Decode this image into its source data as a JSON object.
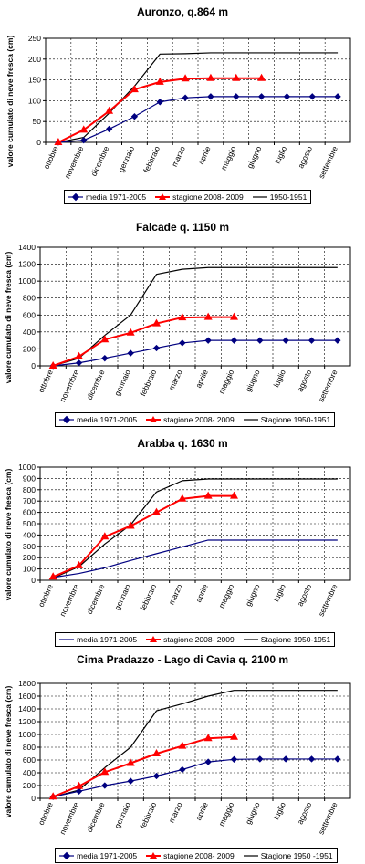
{
  "chart_data": [
    {
      "type": "line",
      "title": "Auronzo, q.864 m",
      "ylabel": "valore cumulato di neve fresca (cm)",
      "ylim": [
        0,
        250
      ],
      "yticks": [
        0,
        50,
        100,
        150,
        200,
        250
      ],
      "categories": [
        "ottobre",
        "novembre",
        "dicembre",
        "gennaio",
        "febbraio",
        "marzo",
        "aprile",
        "maggio",
        "giugno",
        "luglio",
        "agosto",
        "settembre"
      ],
      "grid": true,
      "legend_position": "bottom",
      "series": [
        {
          "name": "media 1971-2005",
          "values": [
            0,
            5,
            32,
            62,
            97,
            107,
            110,
            110,
            110,
            110,
            110,
            110
          ]
        },
        {
          "name": "stagione 2008- 2009",
          "values": [
            0,
            30,
            75,
            127,
            145,
            153,
            154,
            154,
            154,
            null,
            null,
            null
          ]
        },
        {
          "name": "1950-1951",
          "values": [
            0,
            12,
            70,
            135,
            212,
            213,
            215,
            215,
            215,
            215,
            215,
            215
          ]
        }
      ]
    },
    {
      "type": "line",
      "title": "Falcade q. 1150 m",
      "ylabel": "valore cumulato di neve fresca (cm)",
      "ylim": [
        0,
        1400
      ],
      "yticks": [
        0,
        200,
        400,
        600,
        800,
        1000,
        1200,
        1400
      ],
      "categories": [
        "ottobre",
        "novembre",
        "dicembre",
        "gennaio",
        "febbraio",
        "marzo",
        "aprile",
        "maggio",
        "giugno",
        "luglio",
        "agosto",
        "settembre"
      ],
      "grid": true,
      "legend_position": "bottom",
      "series": [
        {
          "name": "media 1971-2005",
          "values": [
            0,
            35,
            90,
            150,
            210,
            270,
            300,
            300,
            300,
            300,
            300,
            300
          ]
        },
        {
          "name": "stagione 2008- 2009",
          "values": [
            0,
            110,
            310,
            390,
            500,
            570,
            575,
            575,
            null,
            null,
            null,
            null
          ]
        },
        {
          "name": "Stagione 1950-1951",
          "values": [
            0,
            90,
            360,
            600,
            1080,
            1140,
            1160,
            1160,
            1160,
            1160,
            1160,
            1160
          ]
        }
      ]
    },
    {
      "type": "line",
      "title": "Arabba q. 1630 m",
      "ylabel": "valore cumulato di neve fresca (cm)",
      "ylim": [
        0,
        1000
      ],
      "yticks": [
        0,
        100,
        200,
        300,
        400,
        500,
        600,
        700,
        800,
        900,
        1000
      ],
      "categories": [
        "ottobre",
        "novembre",
        "dicembre",
        "gennaio",
        "febbraio",
        "marzo",
        "aprile",
        "maggio",
        "giugno",
        "luglio",
        "agosto",
        "settembre"
      ],
      "grid": true,
      "legend_position": "bottom",
      "series": [
        {
          "name": "media 1971-2005",
          "values": [
            25,
            60,
            110,
            175,
            235,
            295,
            355,
            355,
            355,
            355,
            355,
            355
          ]
        },
        {
          "name": "stagione 2008- 2009",
          "values": [
            30,
            130,
            385,
            480,
            600,
            720,
            745,
            745,
            null,
            null,
            null,
            null
          ]
        },
        {
          "name": "Stagione 1950-1951",
          "values": [
            20,
            120,
            320,
            490,
            780,
            880,
            895,
            895,
            895,
            895,
            895,
            895
          ]
        }
      ]
    },
    {
      "type": "line",
      "title": "Cima Pradazzo - Lago di Cavia q. 2100 m",
      "ylabel": "valore cumulato di neve fresca (cm)",
      "ylim": [
        0,
        1800
      ],
      "yticks": [
        0,
        200,
        400,
        600,
        800,
        1000,
        1200,
        1400,
        1600,
        1800
      ],
      "categories": [
        "ottobre",
        "novembre",
        "dicembre",
        "gennaio",
        "febbraio",
        "marzo",
        "aprile",
        "maggio",
        "giugno",
        "luglio",
        "agosto",
        "settembre"
      ],
      "grid": true,
      "legend_position": "bottom",
      "series": [
        {
          "name": "media 1971-2005",
          "values": [
            25,
            110,
            200,
            270,
            350,
            450,
            570,
            610,
            615,
            615,
            615,
            615
          ]
        },
        {
          "name": "stagione 2008- 2009",
          "values": [
            25,
            190,
            410,
            550,
            700,
            820,
            940,
            960,
            null,
            null,
            null,
            null
          ]
        },
        {
          "name": "Stagione 1950 -1951",
          "values": [
            20,
            130,
            480,
            800,
            1370,
            1480,
            1600,
            1690,
            1690,
            1690,
            1690,
            1690
          ]
        }
      ]
    }
  ],
  "colors": {
    "media": "#000080",
    "stagione": "#ff0000",
    "historic": "#000000",
    "grid": "#000000"
  }
}
